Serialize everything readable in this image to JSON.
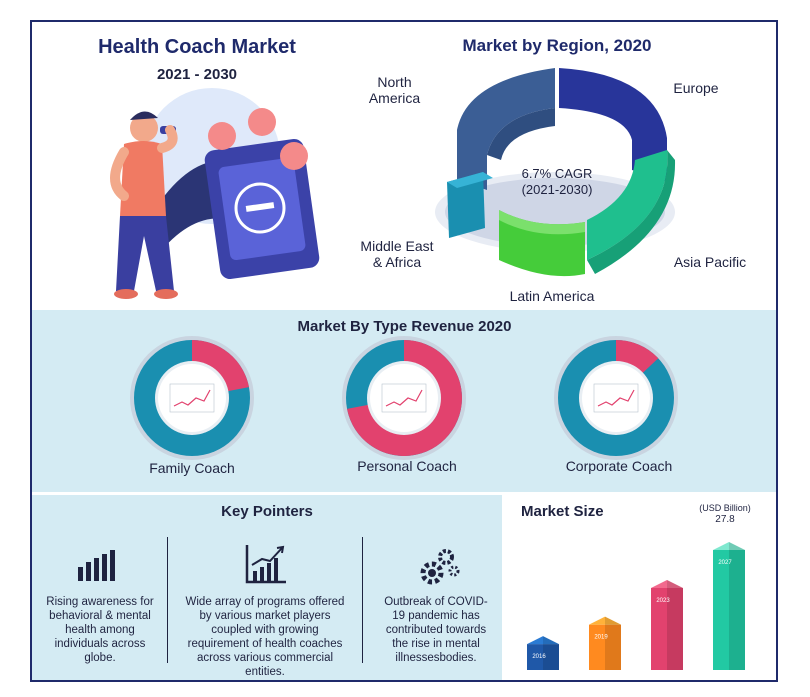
{
  "header": {
    "title": "Health Coach Market",
    "period": "2021 - 2030"
  },
  "region": {
    "title": "Market by Region, 2020",
    "cagr_line1": "6.7% CAGR",
    "cagr_line2": "(2021-2030)",
    "labels": {
      "north_america_1": "North",
      "north_america_2": "America",
      "europe": "Europe",
      "asia_pacific": "Asia Pacific",
      "latin_america": "Latin America",
      "mea_1": "Middle East",
      "mea_2": "& Africa"
    }
  },
  "types": {
    "title": "Market By Type Revenue 2020",
    "items": [
      {
        "label": "Family Coach",
        "share": 0.22
      },
      {
        "label": "Personal Coach",
        "share": 0.72
      },
      {
        "label": "Corporate Coach",
        "share": 0.13
      }
    ]
  },
  "pointers": {
    "title": "Key Pointers",
    "items": [
      {
        "icon": "bar-chart-icon",
        "text": "Rising awareness for behavioral & mental health among individuals across globe."
      },
      {
        "icon": "growth-chart-icon",
        "text": "Wide array of programs offered by various market players coupled with growing requirement of health coaches across various commercial entities."
      },
      {
        "icon": "gears-icon",
        "text": "Outbreak of COVID-19 pandemic has contributed towards the rise in mental illnessesbodies."
      }
    ]
  },
  "market_size": {
    "title": "Market Size",
    "unit": "(USD Billion)",
    "value_2027": "27.8"
  },
  "colors": {
    "navy": "#1f2a6b",
    "pink": "#e2426e",
    "teal": "#1a8fb0",
    "green": "#3fd14a",
    "aqua": "#2ad1a0",
    "orange": "#ff9d1f"
  },
  "chart_data": [
    {
      "type": "pie",
      "title": "Market by Region, 2020",
      "categories": [
        "North America",
        "Europe",
        "Asia Pacific",
        "Latin America",
        "Middle East & Africa"
      ],
      "values": [
        29,
        24,
        21,
        16,
        10
      ]
    },
    {
      "type": "pie",
      "title": "Market By Type Revenue 2020",
      "categories": [
        "Family Coach",
        "Personal Coach",
        "Corporate Coach"
      ],
      "values": [
        22,
        72,
        13
      ]
    },
    {
      "type": "bar",
      "title": "Market Size",
      "ylabel": "(USD Billion)",
      "categories": [
        "2016",
        "2019",
        "2023",
        "2027"
      ],
      "values": [
        6,
        10.5,
        19,
        27.8
      ]
    }
  ]
}
